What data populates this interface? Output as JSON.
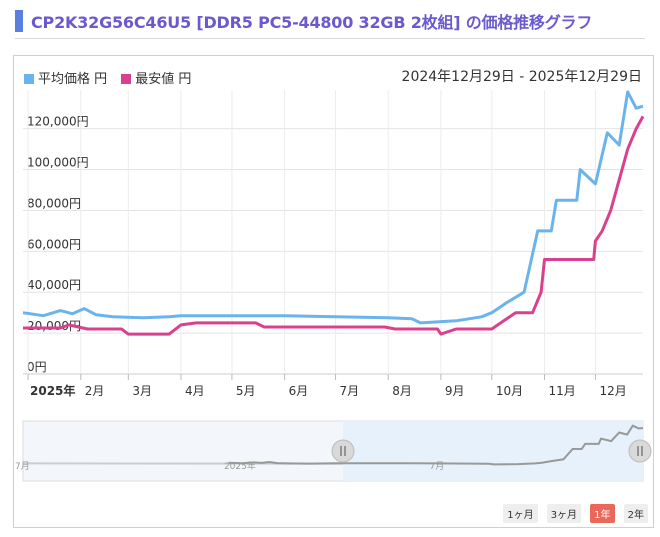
{
  "page": {
    "title": "CP2K32G56C46U5 [DDR5 PC5-44800 32GB 2枚組] の価格推移グラフ",
    "date_range": "2024年12月29日 - 2025年12月29日"
  },
  "legend": [
    {
      "label": "平均価格 円",
      "color": "#6ab4ee"
    },
    {
      "label": "最安値 円",
      "color": "#d9418f"
    }
  ],
  "range_buttons": [
    {
      "label": "1ヶ月",
      "active": false
    },
    {
      "label": "3ヶ月",
      "active": false
    },
    {
      "label": "1年",
      "active": true
    },
    {
      "label": "2年",
      "active": false
    }
  ],
  "navigator": {
    "labels": [
      "7月",
      "2025年",
      "7月"
    ]
  },
  "chart_data": {
    "type": "line",
    "title": "",
    "xlabel": "",
    "ylabel": "",
    "x_ticks": [
      "2025年",
      "2月",
      "3月",
      "4月",
      "5月",
      "6月",
      "7月",
      "8月",
      "9月",
      "10月",
      "11月",
      "12月"
    ],
    "y_ticks": [
      "0円",
      "20,000円",
      "40,000円",
      "60,000円",
      "80,000円",
      "100,000円",
      "120,000円"
    ],
    "ylim": [
      0,
      135000
    ],
    "xlim": [
      "2024-12-29",
      "2025-12-29"
    ],
    "grid": true,
    "legend_position": "top-left",
    "series": [
      {
        "name": "平均価格 円",
        "color": "#6ab4ee",
        "points": [
          [
            "2024-12-29",
            30000
          ],
          [
            "2025-01-10",
            28500
          ],
          [
            "2025-01-20",
            31000
          ],
          [
            "2025-01-27",
            29500
          ],
          [
            "2025-02-03",
            32000
          ],
          [
            "2025-02-10",
            29000
          ],
          [
            "2025-02-20",
            28000
          ],
          [
            "2025-03-10",
            27500
          ],
          [
            "2025-03-25",
            28000
          ],
          [
            "2025-04-01",
            28500
          ],
          [
            "2025-05-01",
            28500
          ],
          [
            "2025-06-01",
            28500
          ],
          [
            "2025-07-01",
            28000
          ],
          [
            "2025-08-01",
            27500
          ],
          [
            "2025-08-15",
            27000
          ],
          [
            "2025-08-20",
            25000
          ],
          [
            "2025-09-10",
            26000
          ],
          [
            "2025-09-25",
            28000
          ],
          [
            "2025-10-01",
            30000
          ],
          [
            "2025-10-10",
            35000
          ],
          [
            "2025-10-20",
            40000
          ],
          [
            "2025-10-28",
            70000
          ],
          [
            "2025-11-05",
            70000
          ],
          [
            "2025-11-08",
            85000
          ],
          [
            "2025-11-20",
            85000
          ],
          [
            "2025-11-22",
            100000
          ],
          [
            "2025-12-01",
            93000
          ],
          [
            "2025-12-08",
            118000
          ],
          [
            "2025-12-15",
            112000
          ],
          [
            "2025-12-20",
            138000
          ],
          [
            "2025-12-25",
            130000
          ],
          [
            "2025-12-29",
            131000
          ]
        ]
      },
      {
        "name": "最安値 円",
        "color": "#d9418f",
        "points": [
          [
            "2024-12-29",
            22500
          ],
          [
            "2025-01-20",
            22500
          ],
          [
            "2025-01-25",
            24000
          ],
          [
            "2025-02-05",
            22000
          ],
          [
            "2025-02-25",
            22000
          ],
          [
            "2025-03-01",
            19500
          ],
          [
            "2025-03-25",
            19500
          ],
          [
            "2025-04-01",
            24000
          ],
          [
            "2025-04-10",
            25000
          ],
          [
            "2025-05-15",
            25000
          ],
          [
            "2025-05-20",
            23000
          ],
          [
            "2025-07-30",
            23000
          ],
          [
            "2025-08-05",
            22000
          ],
          [
            "2025-08-30",
            22000
          ],
          [
            "2025-09-01",
            19500
          ],
          [
            "2025-09-10",
            22000
          ],
          [
            "2025-10-01",
            22000
          ],
          [
            "2025-10-15",
            30000
          ],
          [
            "2025-10-25",
            30000
          ],
          [
            "2025-10-30",
            40000
          ],
          [
            "2025-11-01",
            56000
          ],
          [
            "2025-11-30",
            56000
          ],
          [
            "2025-12-01",
            65000
          ],
          [
            "2025-12-05",
            70000
          ],
          [
            "2025-12-10",
            80000
          ],
          [
            "2025-12-15",
            95000
          ],
          [
            "2025-12-20",
            110000
          ],
          [
            "2025-12-25",
            120000
          ],
          [
            "2025-12-29",
            126000
          ]
        ]
      }
    ]
  }
}
